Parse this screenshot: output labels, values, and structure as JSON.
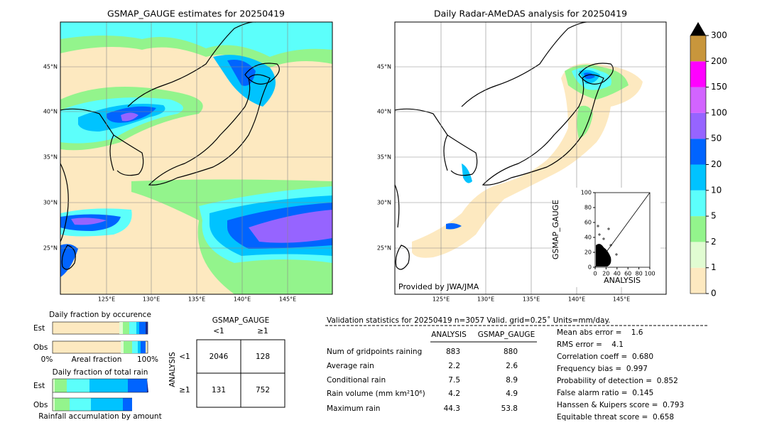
{
  "maps": [
    {
      "title": "GSMAP_GAUGE estimates for 20250419"
    },
    {
      "title": "Daily Radar-AMeDAS analysis for 20250419",
      "credit": "Provided by JWA/JMA"
    }
  ],
  "lon_ticks": [
    "125°E",
    "130°E",
    "135°E",
    "140°E",
    "145°E"
  ],
  "lat_ticks": [
    "45°N",
    "40°N",
    "35°N",
    "30°N",
    "25°N"
  ],
  "colorbar": {
    "levels": [
      0,
      1,
      2,
      5,
      10,
      20,
      50,
      100,
      150,
      200,
      300
    ],
    "colors": [
      "#fde9c0",
      "#e1fcd2",
      "#93f48c",
      "#5cfffb",
      "#00c3ff",
      "#0064ff",
      "#9664ff",
      "#d264ff",
      "#ff00ff",
      "#c8963c"
    ]
  },
  "scatter": {
    "xlabel": "ANALYSIS",
    "ylabel": "GSMAP_GAUGE",
    "lim": [
      0,
      100
    ],
    "xticks": [
      0,
      20,
      40,
      60,
      80,
      100
    ],
    "yticks": [
      0,
      20,
      40,
      60,
      80,
      100
    ]
  },
  "fraction": {
    "occurrence_title": "Daily fraction by occurence",
    "rows": [
      "Est",
      "Obs"
    ],
    "axis_left": "0%",
    "axis_mid": "Areal fraction",
    "axis_right": "100%",
    "total_title": "Daily fraction of total rain",
    "total_rows": [
      "Est",
      "Obs"
    ],
    "total_caption": "Rainfall accumulation by amount"
  },
  "contingency": {
    "col_title": "GSMAP_GAUGE",
    "row_title": "ANALYSIS",
    "col_labels": [
      "<1",
      "≥1"
    ],
    "row_labels": [
      "<1",
      "≥1"
    ],
    "cells": [
      [
        2046,
        128
      ],
      [
        131,
        752
      ]
    ]
  },
  "stats": {
    "title": "Validation statistics for 20250419  n=3057 Valid. grid=0.25˚ Units=mm/day.",
    "headers": [
      "ANALYSIS",
      "GSMAP_GAUGE"
    ],
    "rows": [
      {
        "label": "Num of gridpoints raining",
        "values": [
          "883",
          "880"
        ]
      },
      {
        "label": "Average rain",
        "values": [
          "2.2",
          "2.6"
        ]
      },
      {
        "label": "Conditional rain",
        "values": [
          "7.5",
          "8.9"
        ]
      },
      {
        "label": "Rain volume (mm km²10⁶)",
        "values": [
          "4.2",
          "4.9"
        ]
      },
      {
        "label": "Maximum rain",
        "values": [
          "44.3",
          "53.8"
        ]
      }
    ],
    "scores": [
      "Mean abs error =    1.6",
      "RMS error =    4.1",
      "Correlation coeff =  0.680",
      "Frequency bias =  0.997",
      "Probability of detection =  0.852",
      "False alarm ratio =  0.145",
      "Hanssen & Kuipers score =  0.793",
      "Equitable threat score =  0.658"
    ]
  }
}
